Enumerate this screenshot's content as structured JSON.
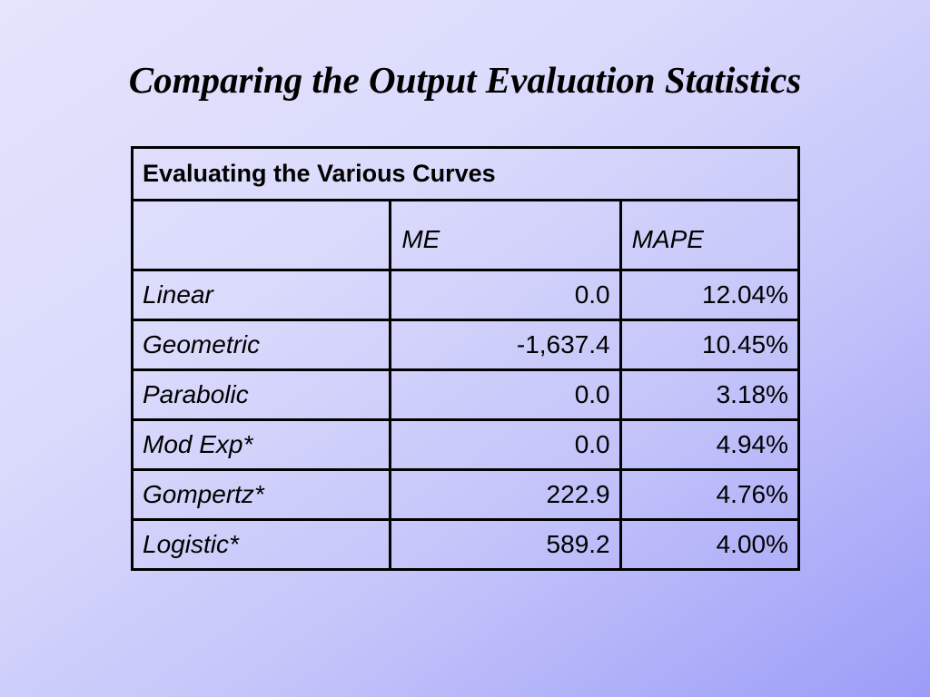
{
  "slide": {
    "title": "Comparing the Output Evaluation Statistics"
  },
  "table": {
    "caption": "Evaluating the Various Curves",
    "columns": [
      "",
      "ME",
      "MAPE"
    ],
    "rows": [
      {
        "name": "Linear",
        "me": "0.0",
        "mape": "12.04%"
      },
      {
        "name": "Geometric",
        "me": "-1,637.4",
        "mape": "10.45%"
      },
      {
        "name": "Parabolic",
        "me": "0.0",
        "mape": "3.18%"
      },
      {
        "name": "Mod Exp*",
        "me": "0.0",
        "mape": "4.94%"
      },
      {
        "name": "Gompertz*",
        "me": "222.9",
        "mape": "4.76%"
      },
      {
        "name": "Logistic*",
        "me": "589.2",
        "mape": "4.00%"
      }
    ]
  },
  "colors": {
    "background_light": "#e4e4fc",
    "background_dark": "#9c9cf8",
    "text": "#000000"
  }
}
